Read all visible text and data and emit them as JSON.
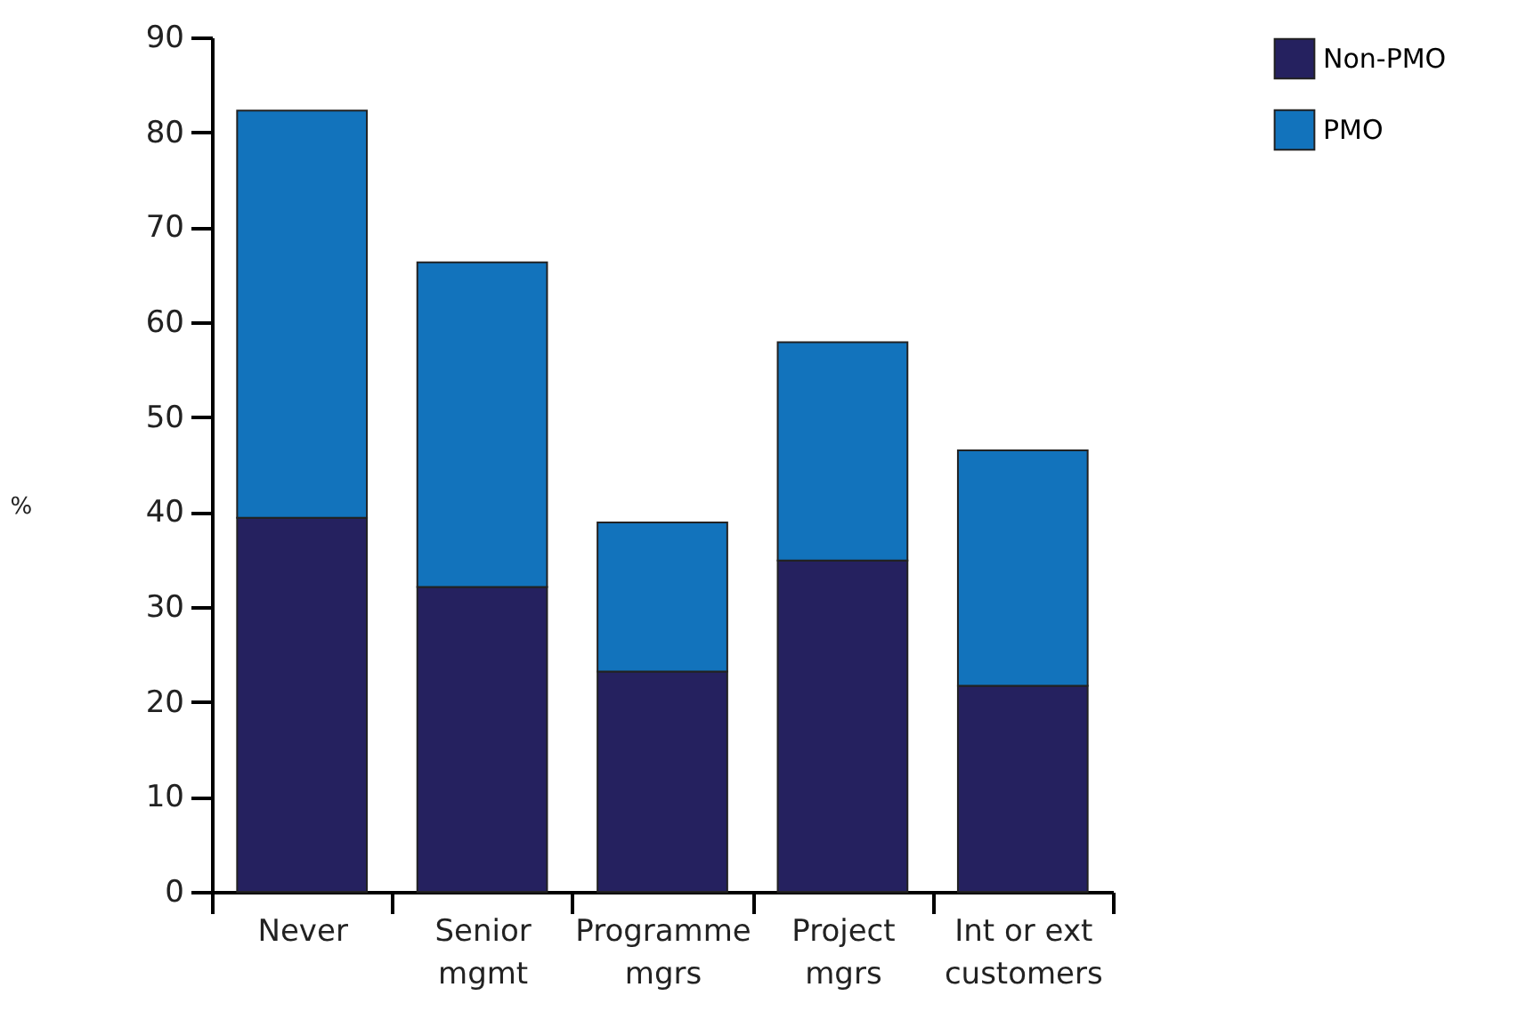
{
  "chart_data": {
    "type": "bar",
    "stacked": true,
    "ylabel": "%",
    "categories": [
      "Never",
      "Senior mgmt",
      "Programme mgrs",
      "Project mgrs",
      "Int or ext customers"
    ],
    "series": [
      {
        "name": "Non-PMO",
        "color": "#25215f",
        "values": [
          39.4,
          32.1,
          23.2,
          34.9,
          21.7
        ]
      },
      {
        "name": "PMO",
        "color": "#1273bc",
        "values": [
          42.9,
          34.2,
          15.7,
          23.0,
          24.8
        ]
      }
    ],
    "ylim": [
      0,
      90
    ],
    "yticks": [
      0,
      10,
      20,
      30,
      40,
      50,
      60,
      70,
      80,
      90
    ],
    "grid": false,
    "legend": "top right"
  }
}
